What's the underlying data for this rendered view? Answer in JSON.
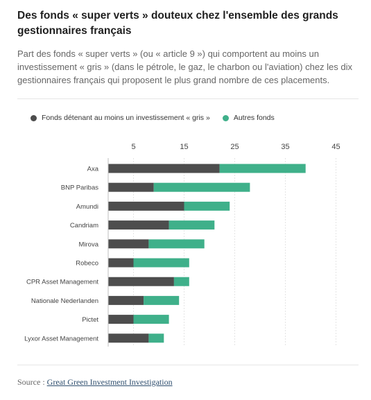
{
  "header": {
    "title": "Des fonds « super verts » douteux chez l'ensemble des grands gestionnaires français",
    "subtitle": "Part des fonds « super verts » (ou « article 9 ») qui comportent au moins un investissement « gris » (dans le pétrole, le gaz, le charbon ou l'aviation) chez les dix gestionnaires français qui proposent le plus grand nombre de ces placements."
  },
  "legend": {
    "gray_label": "Fonds détenant au moins un investissement « gris »",
    "other_label": "Autres fonds"
  },
  "colors": {
    "gray": "#4d4d4d",
    "other": "#3fb08a"
  },
  "source": {
    "prefix": "Source :",
    "link_text": "Great Green Investment Investigation"
  },
  "chart_data": {
    "type": "bar",
    "orientation": "horizontal",
    "stacked": true,
    "categories": [
      "Axa",
      "BNP Paribas",
      "Amundi",
      "Candriam",
      "Mirova",
      "Robeco",
      "CPR Asset Management",
      "Nationale Nederlanden",
      "Pictet",
      "Lyxor Asset Management"
    ],
    "series": [
      {
        "name": "Fonds détenant au moins un investissement « gris »",
        "values": [
          22,
          9,
          15,
          12,
          8,
          5,
          13,
          7,
          5,
          8
        ]
      },
      {
        "name": "Autres fonds",
        "values": [
          17,
          19,
          9,
          9,
          11,
          11,
          3,
          7,
          7,
          3
        ]
      }
    ],
    "xticks": [
      5,
      15,
      25,
      35,
      45
    ],
    "xlim": [
      0,
      45
    ],
    "xaxis_position": "top",
    "grid": true,
    "legend_position": "top-left"
  }
}
